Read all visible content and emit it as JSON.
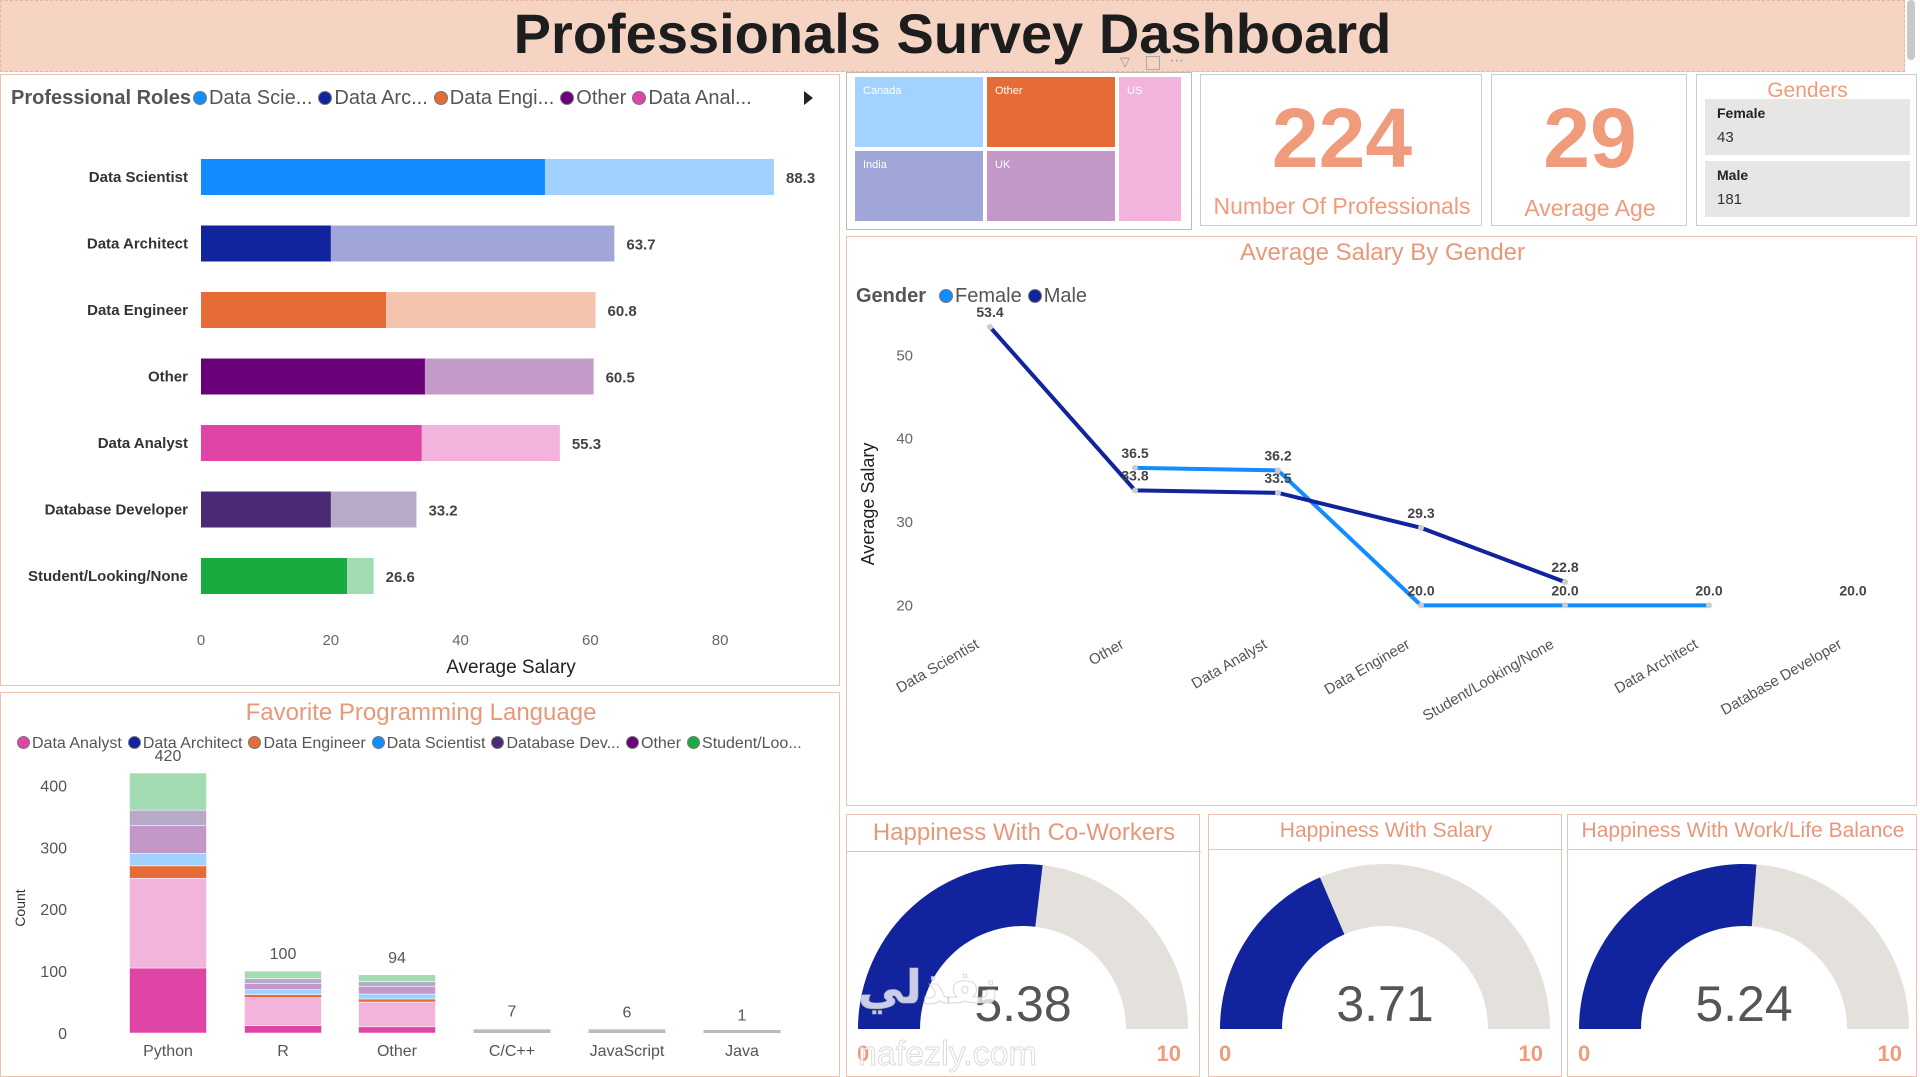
{
  "title": "Professionals Survey Dashboard",
  "colors": {
    "accent": "#ef9b7c",
    "data_scientist": "#118dff",
    "data_architect": "#12239e",
    "data_engineer": "#e66c37",
    "other": "#6b007b",
    "data_analyst": "#e044a7",
    "database_developer": "#4a2a75",
    "student": "#1aab40",
    "gauge_fill": "#12239e",
    "gauge_bg": "#e4e0dc"
  },
  "roles_panel": {
    "legend_title": "Professional Roles",
    "legend_items": [
      "Data Scie...",
      "Data Arc...",
      "Data Engi...",
      "Other",
      "Data Anal..."
    ],
    "more_icon": "triangle-right-icon"
  },
  "treemap": {
    "cells": [
      "Canada",
      "Other",
      "US",
      "India",
      "UK"
    ]
  },
  "cards": {
    "professionals": {
      "value": "224",
      "label": "Number Of Professionals"
    },
    "age": {
      "value": "29",
      "label": "Average Age"
    }
  },
  "genders": {
    "title": "Genders",
    "items": [
      {
        "name": "Female",
        "value": "43"
      },
      {
        "name": "Male",
        "value": "181"
      }
    ]
  },
  "salary_gender": {
    "title": "Average Salary By Gender",
    "legend_title": "Gender",
    "legend_items": [
      "Female",
      "Male"
    ]
  },
  "language_panel": {
    "title": "Favorite Programming Language",
    "legend_items": [
      "Data Analyst",
      "Data Architect",
      "Data Engineer",
      "Data Scientist",
      "Database Dev...",
      "Other",
      "Student/Loo..."
    ]
  },
  "gauges": [
    {
      "title": "Happiness With Co-Workers",
      "value": 5.38,
      "display": "5.38",
      "min_label": "0",
      "max_label": "10",
      "min": 0,
      "max": 10
    },
    {
      "title": "Happiness With Salary",
      "value": 3.71,
      "display": "3.71",
      "min_label": "0",
      "max_label": "10",
      "min": 0,
      "max": 10
    },
    {
      "title": "Happiness With Work/Life Balance",
      "value": 5.24,
      "display": "5.24",
      "min_label": "0",
      "max_label": "10",
      "min": 0,
      "max": 10
    }
  ],
  "watermark": {
    "line1": "نفذلي",
    "line2": "nafezly.com"
  },
  "chart_data": [
    {
      "type": "bar",
      "orientation": "horizontal",
      "categories": [
        "Data Scientist",
        "Data Architect",
        "Data Engineer",
        "Other",
        "Data Analyst",
        "Database Developer",
        "Student/Looking/None"
      ],
      "values": [
        88.3,
        63.7,
        60.8,
        60.5,
        55.3,
        33.2,
        26.6
      ],
      "value_labels": [
        "88.3",
        "63.7",
        "60.8",
        "60.5",
        "55.3",
        "33.2",
        "26.6"
      ],
      "highlight_values": [
        53,
        20,
        28.5,
        34.5,
        34,
        20,
        22.5
      ],
      "xlabel": "Average Salary",
      "ylabel": "",
      "xlim": [
        0,
        88.3
      ],
      "xticks": [
        0,
        20,
        40,
        60,
        80
      ],
      "colors_dark": [
        "#118dff",
        "#12239e",
        "#e66c37",
        "#6b007b",
        "#e044a7",
        "#4a2a75",
        "#1aab40"
      ],
      "colors_light": [
        "#a0d1ff",
        "#a0a7d8",
        "#f5c4af",
        "#c39ac9",
        "#f3b4dc",
        "#b7aac8",
        "#a3dcb2"
      ]
    },
    {
      "type": "line",
      "title": "Average Salary By Gender",
      "categories": [
        "Data Scientist",
        "Other",
        "Data Analyst",
        "Data Engineer",
        "Student/Looking/None",
        "Data Architect",
        "Database Developer"
      ],
      "series": [
        {
          "name": "Female",
          "values": [
            null,
            36.5,
            36.2,
            20.0,
            20.0,
            20.0,
            null
          ],
          "labels": [
            "",
            "36.5",
            "36.2",
            "20.0",
            "20.0",
            "20.0",
            ""
          ]
        },
        {
          "name": "Male",
          "values": [
            53.4,
            33.8,
            33.5,
            29.3,
            22.8,
            null,
            null
          ],
          "labels": [
            "53.4",
            "33.8",
            "33.5",
            "29.3",
            "22.8",
            "",
            ""
          ]
        }
      ],
      "extra_labels": [
        {
          "category": "Database Developer",
          "value": 20.0,
          "label": "20.0"
        }
      ],
      "ylabel": "Average Salary",
      "ylim": [
        18,
        54
      ],
      "yticks": [
        20,
        30,
        40,
        50
      ]
    },
    {
      "type": "bar",
      "stacked": true,
      "title": "Favorite Programming Language",
      "categories": [
        "Python",
        "R",
        "Other",
        "C/C++",
        "JavaScript",
        "Java"
      ],
      "totals": [
        420,
        100,
        94,
        7,
        6,
        1
      ],
      "total_labels": [
        "420",
        "100",
        "94",
        "7",
        "6",
        "1"
      ],
      "series": [
        {
          "name": "Data Analyst",
          "values": [
            105,
            12,
            10,
            2,
            2,
            0
          ]
        },
        {
          "name": "Data Analyst (light)",
          "values": [
            145,
            45,
            40,
            2,
            1,
            1
          ]
        },
        {
          "name": "Data Engineer",
          "values": [
            20,
            5,
            5,
            1,
            1,
            0
          ]
        },
        {
          "name": "Data Scientist",
          "values": [
            20,
            8,
            8,
            1,
            1,
            0
          ]
        },
        {
          "name": "Other",
          "values": [
            45,
            10,
            12,
            1,
            1,
            0
          ]
        },
        {
          "name": "Database Dev...",
          "values": [
            25,
            8,
            8,
            0,
            0,
            0
          ]
        },
        {
          "name": "Student/Loo...",
          "values": [
            60,
            12,
            11,
            0,
            0,
            0
          ]
        }
      ],
      "ylabel": "Count",
      "ylim": [
        0,
        420
      ],
      "yticks": [
        0,
        100,
        200,
        300,
        400
      ]
    }
  ]
}
